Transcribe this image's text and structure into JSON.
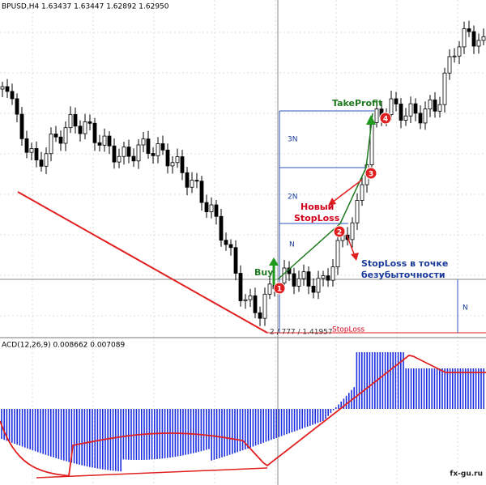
{
  "header": {
    "symbol_info": "BPUSD,H4  1.63437 1.63447 1.62892 1.62950"
  },
  "annotations": {
    "take_profit": "TakeProfit",
    "level_3n": "3N",
    "level_2n": "2N",
    "level_n": "N",
    "new_stoploss": [
      "Новый",
      "StopLoss"
    ],
    "breakeven": [
      "StopLoss в точке",
      "безубыточности"
    ],
    "buy": "Buy",
    "markers": [
      "1",
      "2",
      "3",
      "4"
    ],
    "order_info": "2 / 777 / 1.41957",
    "stoploss": "StopLoss",
    "right_n": "N"
  },
  "macd": {
    "label": "ACD(12,26,9) 0.008662 0.007089"
  },
  "watermark": "fx-gu.ru"
}
